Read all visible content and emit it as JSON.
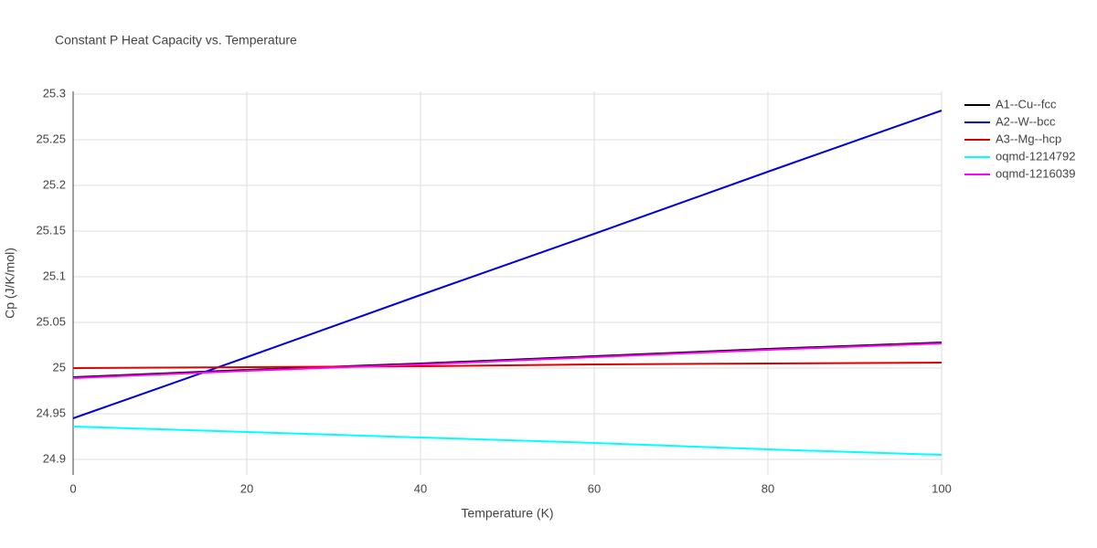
{
  "chart_data": {
    "type": "line",
    "title": "Constant P Heat Capacity vs. Temperature",
    "xlabel": "Temperature (K)",
    "ylabel": "Cp (J/K/mol)",
    "x": [
      0,
      20,
      40,
      60,
      80,
      100
    ],
    "series": [
      {
        "name": "A1--Cu--fcc",
        "color": "#000000",
        "values": [
          24.99,
          24.998,
          25.005,
          25.013,
          25.021,
          25.028
        ]
      },
      {
        "name": "A2--W--bcc",
        "color": "#0000dd",
        "values": [
          24.945,
          25.012,
          25.08,
          25.147,
          25.215,
          25.282
        ]
      },
      {
        "name": "A3--Mg--hcp",
        "color": "#dd0000",
        "values": [
          25.0,
          25.001,
          25.002,
          25.004,
          25.005,
          25.006
        ]
      },
      {
        "name": "oqmd-1214792",
        "color": "#00ffff",
        "values": [
          24.936,
          24.93,
          24.924,
          24.918,
          24.911,
          24.905
        ]
      },
      {
        "name": "oqmd-1216039",
        "color": "#ff00ff",
        "values": [
          24.989,
          24.997,
          25.004,
          25.012,
          25.02,
          25.027
        ]
      }
    ],
    "xlim": [
      0,
      100
    ],
    "xticks": [
      0,
      20,
      40,
      60,
      80,
      100
    ],
    "ylim": [
      24.883,
      25.303
    ],
    "yticks": [
      24.9,
      24.95,
      25,
      25.05,
      25.1,
      25.15,
      25.2,
      25.25,
      25.3
    ],
    "grid": true,
    "legend": "right"
  }
}
